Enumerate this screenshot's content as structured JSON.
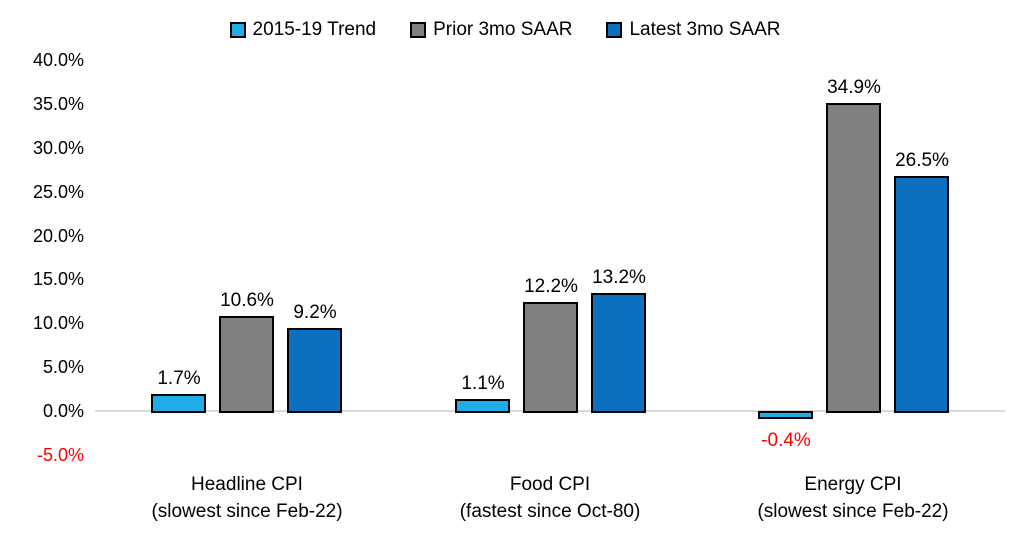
{
  "chart_data": {
    "type": "bar",
    "title": "",
    "xlabel": "",
    "ylabel": "",
    "grid": "zero-line-only",
    "legend_position": "top-center",
    "background_color": "#ffffff",
    "bar_border_color": "#000000",
    "zero_line_color": "#d9d9d9",
    "categories": [
      {
        "line1": "Headline CPI",
        "line2": "(slowest since Feb-22)"
      },
      {
        "line1": "Food CPI",
        "line2": "(fastest since Oct-80)"
      },
      {
        "line1": "Energy CPI",
        "line2": "(slowest since Feb-22)"
      }
    ],
    "series": [
      {
        "name": "2015-19 Trend",
        "color": "#1face8",
        "values": [
          1.7,
          1.1,
          -0.4
        ],
        "labels": [
          "1.7%",
          "1.1%",
          "-0.4%"
        ]
      },
      {
        "name": "Prior 3mo SAAR",
        "color": "#808080",
        "values": [
          10.6,
          12.2,
          34.9
        ],
        "labels": [
          "10.6%",
          "12.2%",
          "34.9%"
        ]
      },
      {
        "name": "Latest 3mo SAAR",
        "color": "#0b70c0",
        "values": [
          9.2,
          13.2,
          26.5
        ],
        "labels": [
          "9.2%",
          "13.2%",
          "26.5%"
        ]
      }
    ],
    "y_axis": {
      "min": -5,
      "max": 40,
      "step": 5,
      "negative_color": "#ff0000",
      "positive_color": "#000000",
      "ticks": [
        {
          "value": 40,
          "label": "40.0%"
        },
        {
          "value": 35,
          "label": "35.0%"
        },
        {
          "value": 30,
          "label": "30.0%"
        },
        {
          "value": 25,
          "label": "25.0%"
        },
        {
          "value": 20,
          "label": "20.0%"
        },
        {
          "value": 15,
          "label": "15.0%"
        },
        {
          "value": 10,
          "label": "10.0%"
        },
        {
          "value": 5,
          "label": "5.0%"
        },
        {
          "value": 0,
          "label": "0.0%"
        },
        {
          "value": -5,
          "label": "-5.0%"
        }
      ]
    }
  }
}
